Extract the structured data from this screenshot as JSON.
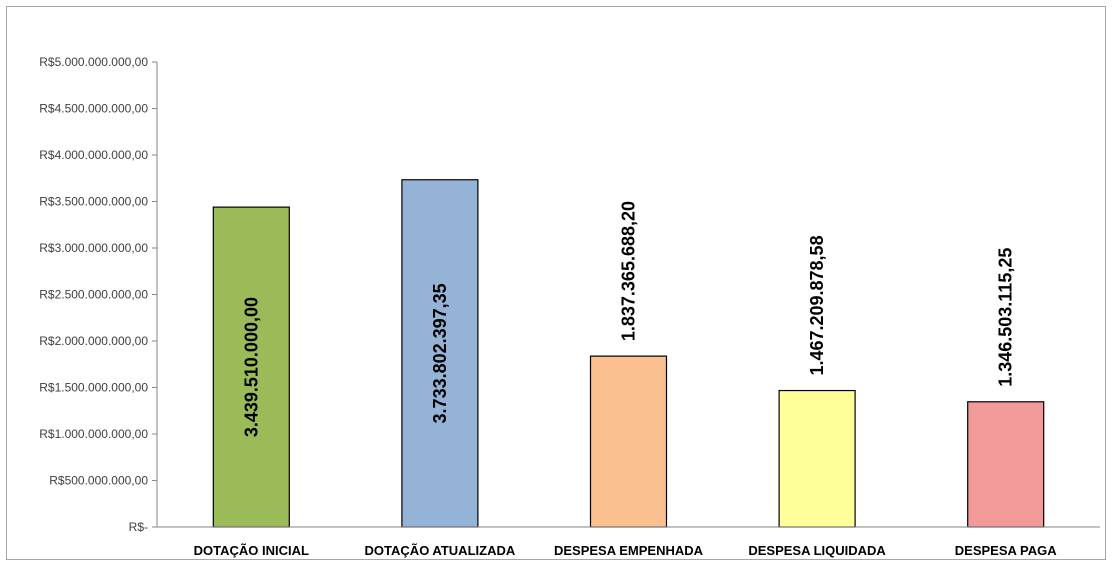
{
  "chart_data": {
    "type": "bar",
    "title": "",
    "xlabel": "",
    "ylabel": "",
    "ylim": [
      0,
      5000000000
    ],
    "yticks": [
      0,
      500000000,
      1000000000,
      1500000000,
      2000000000,
      2500000000,
      3000000000,
      3500000000,
      4000000000,
      4500000000,
      5000000000
    ],
    "ytick_labels": [
      "R$-",
      "R$500.000.000,00",
      "R$1.000.000.000,00",
      "R$1.500.000.000,00",
      "R$2.000.000.000,00",
      "R$2.500.000.000,00",
      "R$3.000.000.000,00",
      "R$3.500.000.000,00",
      "R$4.000.000.000,00",
      "R$4.500.000.000,00",
      "R$5.000.000.000,00"
    ],
    "categories": [
      "DOTAÇÃO INICIAL",
      "DOTAÇÃO ATUALIZADA",
      "DESPESA EMPENHADA",
      "DESPESA LIQUIDADA",
      "DESPESA PAGA"
    ],
    "values": [
      3439510000.0,
      3733802397.35,
      1837365688.2,
      1467209878.58,
      1346503115.25
    ],
    "data_labels": [
      "3.439.510.000,00",
      "3.733.802.397,35",
      "1.837.365.688,20",
      "1.467.209.878,58",
      "1.346.503.115,25"
    ],
    "label_position": [
      "inside",
      "inside",
      "above",
      "above",
      "above"
    ],
    "colors": [
      "#9bbb59",
      "#95b3d7",
      "#fac090",
      "#ffff99",
      "#f2999a"
    ],
    "grid": false,
    "legend": "none"
  }
}
